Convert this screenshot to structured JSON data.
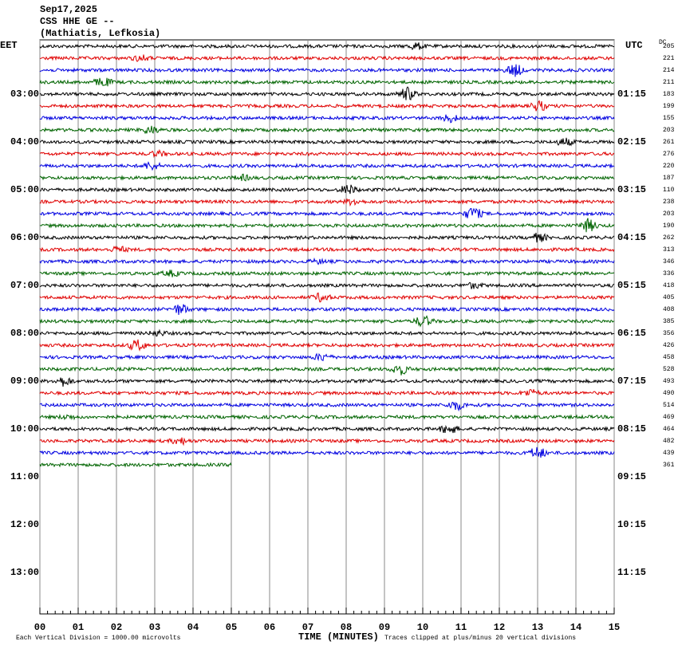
{
  "chart_data": {
    "type": "helicorder",
    "header": [
      "Sep17,2025",
      "CSS HHE GE --",
      "(Mathiatis, Lefkosia)"
    ],
    "left_label": "EET",
    "right_label": "UTC",
    "dc_label": "DC",
    "dc_values": [
      205,
      221,
      214,
      211,
      183,
      199,
      155,
      203,
      261,
      276,
      220,
      187,
      110,
      238,
      203,
      190,
      262,
      313,
      346,
      336,
      418,
      405,
      408,
      385,
      356,
      426,
      458,
      528,
      493,
      490,
      514,
      469,
      464,
      482,
      439,
      361
    ],
    "trace_colors": [
      "#000000",
      "#e00000",
      "#0000e0",
      "#006400"
    ],
    "left_times": [
      "03:00",
      "04:00",
      "05:00",
      "06:00",
      "07:00",
      "08:00",
      "09:00",
      "10:00",
      "11:00",
      "12:00",
      "13:00"
    ],
    "right_times": [
      "01:15",
      "02:15",
      "03:15",
      "04:15",
      "05:15",
      "06:15",
      "07:15",
      "08:15",
      "09:15",
      "10:15",
      "11:15"
    ],
    "xlim": [
      0,
      15
    ],
    "xticks": [
      {
        "value": 0,
        "label": "00"
      },
      {
        "value": 1,
        "label": "01"
      },
      {
        "value": 2,
        "label": "02"
      },
      {
        "value": 3,
        "label": "03"
      },
      {
        "value": 4,
        "label": "04"
      },
      {
        "value": 5,
        "label": "05"
      },
      {
        "value": 6,
        "label": "06"
      },
      {
        "value": 7,
        "label": "07"
      },
      {
        "value": 8,
        "label": "08"
      },
      {
        "value": 9,
        "label": "09"
      },
      {
        "value": 10,
        "label": "10"
      },
      {
        "value": 11,
        "label": "11"
      },
      {
        "value": 12,
        "label": "12"
      },
      {
        "value": 13,
        "label": "13"
      },
      {
        "value": 14,
        "label": "14"
      },
      {
        "value": 15,
        "label": "15"
      }
    ],
    "x_label": "TIME (MINUTES)",
    "footnote_left": "Each Vertical Division = 1000.00 microvolts",
    "footnote_right": "Traces clipped at plus/minus 20 vertical divisions"
  }
}
